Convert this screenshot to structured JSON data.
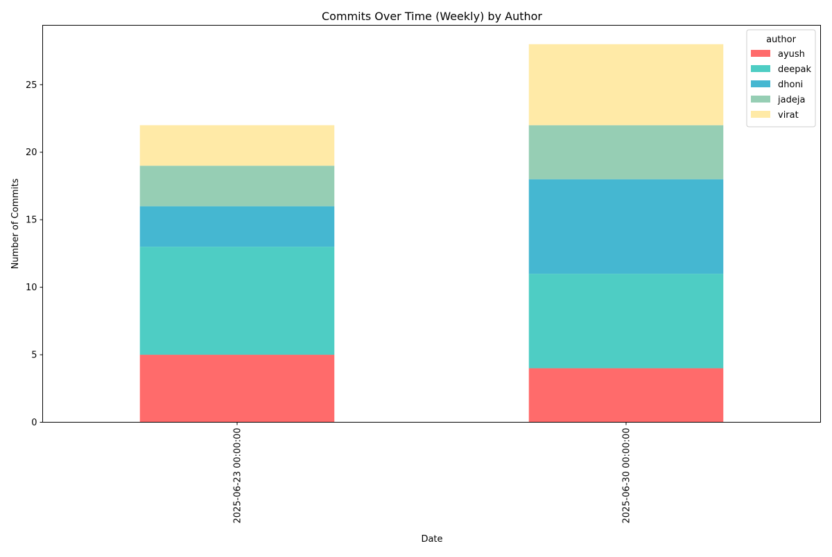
{
  "chart_data": {
    "type": "bar",
    "stacked": true,
    "title": "Commits Over Time (Weekly) by Author",
    "xlabel": "Date",
    "ylabel": "Number of Commits",
    "categories": [
      "2025-06-23 00:00:00",
      "2025-06-30 00:00:00"
    ],
    "ylim": [
      0,
      29.4
    ],
    "yticks": [
      0,
      5,
      10,
      15,
      20,
      25
    ],
    "grid": false,
    "legend": {
      "title": "author",
      "placement": "top-right"
    },
    "series": [
      {
        "name": "ayush",
        "color": "#ff6b6b",
        "values": [
          5,
          4
        ]
      },
      {
        "name": "deepak",
        "color": "#4ecdc4",
        "values": [
          8,
          7
        ]
      },
      {
        "name": "dhoni",
        "color": "#45b7d1",
        "values": [
          3,
          7
        ]
      },
      {
        "name": "jadeja",
        "color": "#96ceb4",
        "values": [
          3,
          4
        ]
      },
      {
        "name": "virat",
        "color": "#ffeaa7",
        "values": [
          3,
          6
        ]
      }
    ]
  }
}
